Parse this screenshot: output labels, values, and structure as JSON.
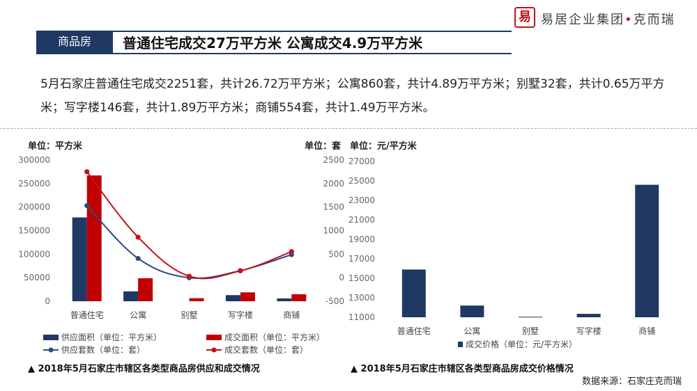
{
  "brand": {
    "logo_text": "易居企业集团",
    "logo_sub": "克而瑞",
    "logo_mark": "易"
  },
  "header": {
    "tag": "商品房",
    "headline": "普通住宅成交27万平方米 公寓成交4.9万平方米"
  },
  "summary": "5月石家庄普通住宅成交2251套，共计26.72万平方米；公寓860套，共计4.89万平方米；别墅32套，共计0.65万平方米；写字楼146套，共计1.89万平方米；商铺554套，共计1.49万平方米。",
  "colors": {
    "navy": "#1f3864",
    "red": "#c00000",
    "line_navy": "#2e4a7d",
    "line_red": "#c0131a"
  },
  "chart_data": [
    {
      "type": "bar",
      "categories": [
        "普通住宅",
        "公寓",
        "别墅",
        "写字楼",
        "商铺"
      ],
      "unit_left": "单位：平方米",
      "unit_right": "单位：套",
      "ylim": [
        0,
        300000
      ],
      "y_ticks": [
        "300000",
        "250000",
        "200000",
        "150000",
        "100000",
        "50000",
        "0"
      ],
      "y2lim": [
        -500,
        2500
      ],
      "y2_ticks": [
        "2500",
        "2000",
        "1500",
        "1000",
        "500",
        "0",
        "-500"
      ],
      "series": [
        {
          "name": "供应面积（单位：平方米）",
          "kind": "bar",
          "axis": "left",
          "values": [
            178000,
            21000,
            0,
            13000,
            6000
          ]
        },
        {
          "name": "成交面积（单位：平方米）",
          "kind": "bar",
          "axis": "left",
          "values": [
            267200,
            48900,
            6500,
            18900,
            14900
          ]
        },
        {
          "name": "供应套数（单位：套）",
          "kind": "line",
          "axis": "right",
          "values": [
            1530,
            410,
            0,
            150,
            490
          ]
        },
        {
          "name": "成交套数（单位：套）",
          "kind": "line",
          "axis": "right",
          "values": [
            2251,
            860,
            32,
            146,
            554
          ]
        }
      ],
      "caption": "▲ 2018年5月石家庄市辖区各类型商品房供应和成交情况"
    },
    {
      "type": "bar",
      "unit": "单位：元/平方米",
      "categories": [
        "普通住宅",
        "公寓",
        "别墅",
        "写字楼",
        "商铺"
      ],
      "ylim": [
        11000,
        27000
      ],
      "y_ticks": [
        "27000",
        "25000",
        "23000",
        "21000",
        "19000",
        "17000",
        "15000",
        "13000",
        "11000"
      ],
      "series": [
        {
          "name": "成交价格（单位：元/平方米）",
          "values": [
            15900,
            12200,
            11050,
            11350,
            24600
          ]
        }
      ],
      "caption": "▲ 2018年5月石家庄市辖区各类型商品房成交价格情况"
    }
  ],
  "source": "数据来源：石家庄克而瑞"
}
